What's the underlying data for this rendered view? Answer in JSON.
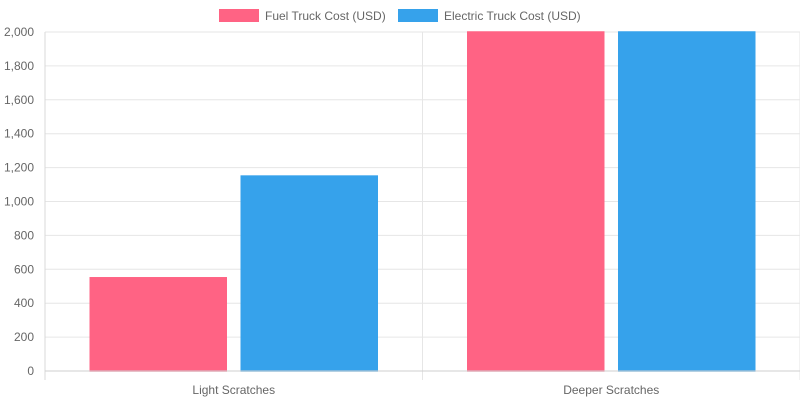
{
  "chart_data": {
    "type": "bar",
    "categories": [
      "Light Scratches",
      "Deeper Scratches"
    ],
    "series": [
      {
        "name": "Fuel Truck Cost (USD)",
        "color": "#ff6384",
        "values": [
          550,
          2000
        ]
      },
      {
        "name": "Electric Truck Cost (USD)",
        "color": "#36a2eb",
        "values": [
          1150,
          2000
        ]
      }
    ],
    "yticks": [
      "0",
      "200",
      "400",
      "600",
      "800",
      "1,000",
      "1,200",
      "1,400",
      "1,600",
      "1,800",
      "2,000"
    ],
    "ylim": [
      0,
      2000
    ],
    "grid": true,
    "legend": "top"
  }
}
